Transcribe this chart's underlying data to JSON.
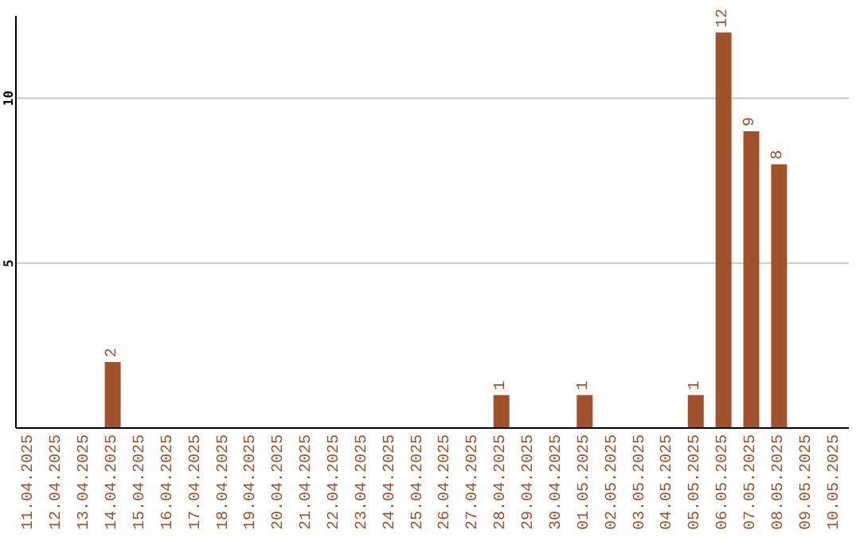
{
  "chart_data": {
    "type": "bar",
    "categories": [
      "11.04.2025",
      "12.04.2025",
      "13.04.2025",
      "14.04.2025",
      "15.04.2025",
      "16.04.2025",
      "17.04.2025",
      "18.04.2025",
      "19.04.2025",
      "20.04.2025",
      "21.04.2025",
      "22.04.2025",
      "23.04.2025",
      "24.04.2025",
      "25.04.2025",
      "26.04.2025",
      "27.04.2025",
      "28.04.2025",
      "29.04.2025",
      "30.04.2025",
      "01.05.2025",
      "02.05.2025",
      "03.05.2025",
      "04.05.2025",
      "05.05.2025",
      "06.05.2025",
      "07.05.2025",
      "08.05.2025",
      "09.05.2025",
      "10.05.2025"
    ],
    "values": [
      0,
      0,
      0,
      2,
      0,
      0,
      0,
      0,
      0,
      0,
      0,
      0,
      0,
      0,
      0,
      0,
      0,
      1,
      0,
      0,
      1,
      0,
      0,
      0,
      1,
      12,
      9,
      8,
      0,
      0
    ],
    "value_labels": [
      null,
      null,
      null,
      "2",
      null,
      null,
      null,
      null,
      null,
      null,
      null,
      null,
      null,
      null,
      null,
      null,
      null,
      "1",
      null,
      null,
      "1",
      null,
      null,
      null,
      "1",
      "12",
      "9",
      "8",
      null,
      null
    ],
    "color": "#a0522d",
    "ylim": [
      0,
      12.5
    ],
    "yticks": [
      5,
      10
    ],
    "grid": "y"
  }
}
